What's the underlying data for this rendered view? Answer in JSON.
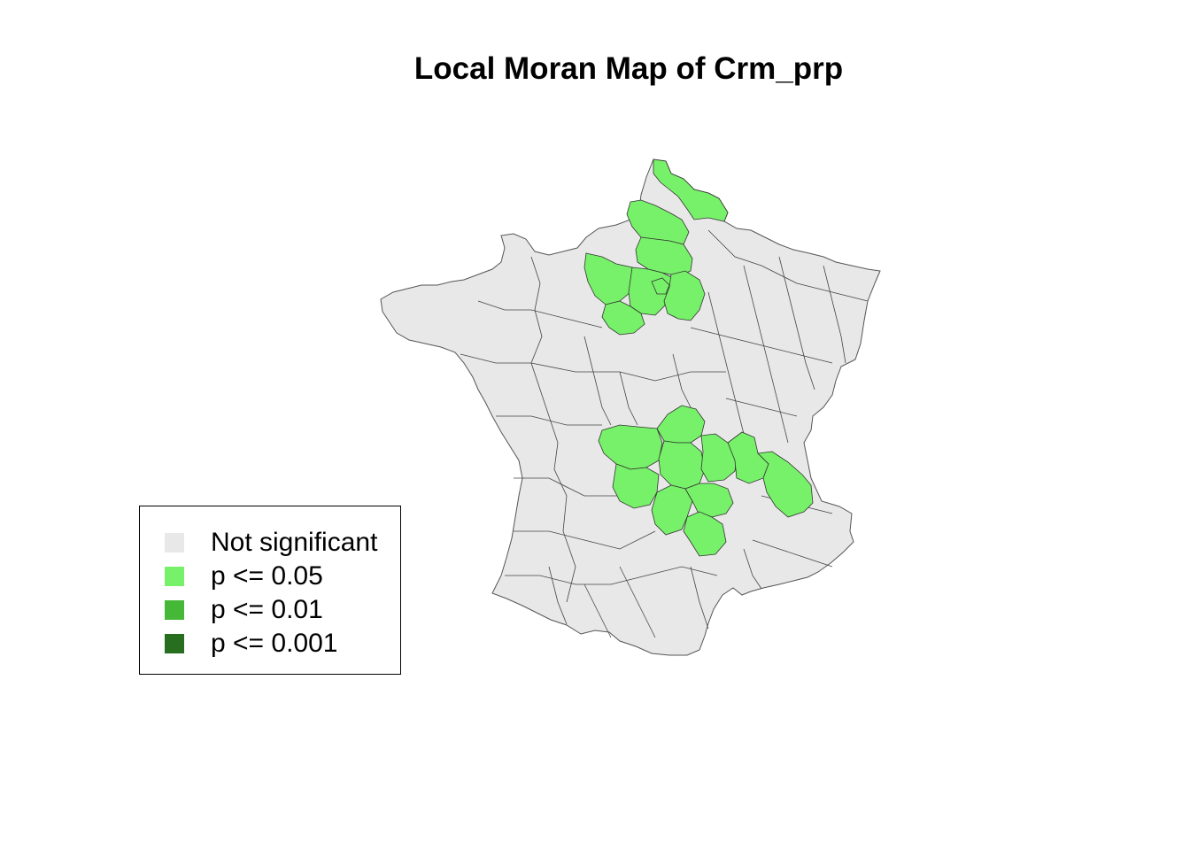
{
  "title": "Local Moran Map of Crm_prp",
  "map": {
    "region": "France",
    "unit": "departements",
    "fill_not_significant": "#e8e8e8",
    "border_color": "#333333",
    "significant_clusters": [
      {
        "area": "north (Nord / Pas-de-Calais / Ile-de-France area)",
        "class": "p <= 0.05"
      },
      {
        "area": "centre (Massif Central / Auvergne / Rhone area)",
        "class": "p <= 0.05"
      }
    ]
  },
  "legend": {
    "items": [
      {
        "label": "Not significant",
        "color": "#e8e8e8"
      },
      {
        "label": "p <= 0.05",
        "color": "#77f169"
      },
      {
        "label": "p <= 0.01",
        "color": "#45b837"
      },
      {
        "label": "p <= 0.001",
        "color": "#276e1e"
      }
    ]
  }
}
